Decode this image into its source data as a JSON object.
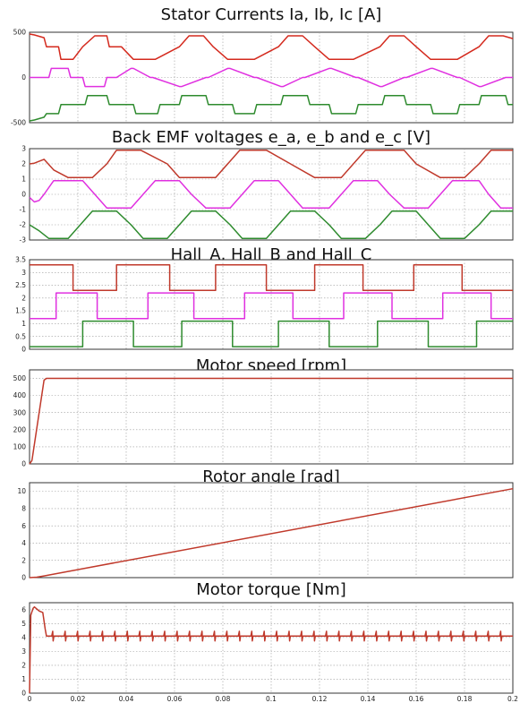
{
  "chart_data": [
    {
      "type": "line",
      "title": "Stator Currents Ia, Ib, Ic [A]",
      "ylim": [
        -500,
        500
      ],
      "yticks": [
        "500",
        "0",
        "-500"
      ],
      "xlim": [
        0,
        0.2
      ],
      "grid": true,
      "series": [
        {
          "color": "#d42a1e",
          "description": "trapezoid 6-step current, amplitude 200 A centred on +300, first step at startup peaks near +480",
          "x": [
            0,
            0.002,
            0.006,
            0.007,
            0.012,
            0.013,
            0.018,
            0.022,
            0.027,
            0.032,
            0.033,
            0.038,
            0.043,
            0.052,
            0.062,
            0.066,
            0.072,
            0.076,
            0.082,
            0.093,
            0.103,
            0.107,
            0.113,
            0.118,
            0.124,
            0.134,
            0.145,
            0.149,
            0.155,
            0.16,
            0.166,
            0.177,
            0.186,
            0.19,
            0.196,
            0.2
          ],
          "y": [
            480,
            470,
            440,
            340,
            340,
            200,
            200,
            340,
            460,
            460,
            340,
            340,
            200,
            200,
            340,
            460,
            460,
            340,
            200,
            200,
            340,
            460,
            460,
            340,
            200,
            200,
            340,
            460,
            460,
            340,
            200,
            200,
            340,
            460,
            460,
            430
          ]
        },
        {
          "color": "#e030e0",
          "description": "trapezoid current around 0, ±100 A",
          "x": [
            0,
            0.008,
            0.009,
            0.016,
            0.017,
            0.022,
            0.023,
            0.031,
            0.032,
            0.036,
            0.042,
            0.043,
            0.05,
            0.051,
            0.062,
            0.063,
            0.073,
            0.074,
            0.082,
            0.083,
            0.093,
            0.094,
            0.104,
            0.105,
            0.113,
            0.114,
            0.124,
            0.125,
            0.135,
            0.136,
            0.145,
            0.146,
            0.155,
            0.156,
            0.166,
            0.167,
            0.177,
            0.178,
            0.186,
            0.187,
            0.197,
            0.198,
            0.2
          ],
          "y": [
            0,
            0,
            100,
            100,
            0,
            0,
            -100,
            -100,
            0,
            0,
            100,
            100,
            0,
            0,
            -100,
            -100,
            0,
            0,
            100,
            100,
            0,
            0,
            -100,
            -100,
            0,
            0,
            100,
            100,
            0,
            0,
            -100,
            -100,
            0,
            0,
            100,
            100,
            0,
            0,
            -100,
            -100,
            0,
            0,
            0
          ]
        },
        {
          "color": "#2e8b2e",
          "description": "trapezoid current around -300, startup dip near -480",
          "x": [
            0,
            0.002,
            0.006,
            0.007,
            0.012,
            0.013,
            0.023,
            0.024,
            0.032,
            0.033,
            0.043,
            0.044,
            0.053,
            0.054,
            0.062,
            0.063,
            0.073,
            0.074,
            0.084,
            0.085,
            0.093,
            0.094,
            0.104,
            0.105,
            0.115,
            0.116,
            0.124,
            0.125,
            0.135,
            0.136,
            0.146,
            0.147,
            0.155,
            0.156,
            0.166,
            0.167,
            0.177,
            0.178,
            0.186,
            0.187,
            0.197,
            0.198,
            0.2
          ],
          "y": [
            -480,
            -470,
            -440,
            -400,
            -400,
            -300,
            -300,
            -200,
            -200,
            -300,
            -300,
            -400,
            -400,
            -300,
            -300,
            -200,
            -200,
            -300,
            -300,
            -400,
            -400,
            -300,
            -300,
            -200,
            -200,
            -300,
            -300,
            -400,
            -400,
            -300,
            -300,
            -200,
            -200,
            -300,
            -300,
            -400,
            -400,
            -300,
            -300,
            -200,
            -200,
            -300,
            -300
          ]
        }
      ]
    },
    {
      "type": "line",
      "title": "Back EMF voltages e_a, e_b and e_c [V]",
      "ylim": [
        -3,
        3
      ],
      "yticks": [
        "3",
        "2",
        "1",
        "0",
        "-1",
        "-2",
        "-3"
      ],
      "xlim": [
        0,
        0.2
      ],
      "grid": true,
      "series": [
        {
          "color": "#c0392b",
          "x": [
            0,
            0.002,
            0.006,
            0.01,
            0.016,
            0.026,
            0.032,
            0.036,
            0.046,
            0.057,
            0.062,
            0.067,
            0.077,
            0.087,
            0.093,
            0.098,
            0.108,
            0.118,
            0.124,
            0.129,
            0.139,
            0.149,
            0.155,
            0.16,
            0.17,
            0.18,
            0.186,
            0.191,
            0.2
          ],
          "y": [
            2.0,
            2.05,
            2.3,
            1.6,
            1.1,
            1.1,
            2.0,
            2.9,
            2.9,
            2.0,
            1.1,
            1.1,
            1.1,
            2.9,
            2.9,
            2.9,
            2.0,
            1.1,
            1.1,
            1.1,
            2.9,
            2.9,
            2.9,
            2.0,
            1.1,
            1.1,
            2.0,
            2.9,
            2.9
          ]
        },
        {
          "color": "#e030e0",
          "x": [
            0,
            0.002,
            0.004,
            0.006,
            0.01,
            0.012,
            0.022,
            0.027,
            0.032,
            0.042,
            0.047,
            0.052,
            0.062,
            0.067,
            0.073,
            0.083,
            0.088,
            0.093,
            0.103,
            0.108,
            0.113,
            0.124,
            0.129,
            0.134,
            0.144,
            0.149,
            0.155,
            0.165,
            0.17,
            0.175,
            0.186,
            0.19,
            0.195,
            0.2
          ],
          "y": [
            -0.2,
            -0.5,
            -0.4,
            0.0,
            0.9,
            0.9,
            0.9,
            0.0,
            -0.9,
            -0.9,
            0.0,
            0.9,
            0.9,
            0.0,
            -0.9,
            -0.9,
            0.0,
            0.9,
            0.9,
            0.0,
            -0.9,
            -0.9,
            0.0,
            0.9,
            0.9,
            0.0,
            -0.9,
            -0.9,
            0.0,
            0.9,
            0.9,
            0.0,
            -0.9,
            -0.9
          ]
        },
        {
          "color": "#2e8b2e",
          "x": [
            0,
            0.004,
            0.008,
            0.016,
            0.021,
            0.026,
            0.036,
            0.042,
            0.047,
            0.057,
            0.062,
            0.067,
            0.077,
            0.083,
            0.088,
            0.098,
            0.103,
            0.108,
            0.118,
            0.124,
            0.129,
            0.139,
            0.145,
            0.15,
            0.16,
            0.165,
            0.17,
            0.18,
            0.186,
            0.191,
            0.2
          ],
          "y": [
            -2.0,
            -2.4,
            -2.9,
            -2.9,
            -2.0,
            -1.1,
            -1.1,
            -2.0,
            -2.9,
            -2.9,
            -2.0,
            -1.1,
            -1.1,
            -2.0,
            -2.9,
            -2.9,
            -2.0,
            -1.1,
            -1.1,
            -2.0,
            -2.9,
            -2.9,
            -2.0,
            -1.1,
            -1.1,
            -2.0,
            -2.9,
            -2.9,
            -2.0,
            -1.1,
            -1.1
          ]
        }
      ]
    },
    {
      "type": "line",
      "title": "Hall_A, Hall_B and Hall_C",
      "ylim": [
        0,
        3.5
      ],
      "yticks": [
        "3.5",
        "3",
        "2.5",
        "2",
        "1.5",
        "1",
        "0.5",
        "0"
      ],
      "xlim": [
        0,
        0.2
      ],
      "grid": true,
      "series": [
        {
          "color": "#c0392b",
          "step": true,
          "x": [
            0,
            0.018,
            0.018,
            0.036,
            0.036,
            0.058,
            0.058,
            0.077,
            0.077,
            0.098,
            0.098,
            0.118,
            0.118,
            0.138,
            0.138,
            0.159,
            0.159,
            0.179,
            0.179,
            0.2
          ],
          "y": [
            3.3,
            3.3,
            2.3,
            2.3,
            3.3,
            3.3,
            2.3,
            2.3,
            3.3,
            3.3,
            2.3,
            2.3,
            3.3,
            3.3,
            2.3,
            2.3,
            3.3,
            3.3,
            2.3,
            2.3
          ]
        },
        {
          "color": "#e030e0",
          "step": true,
          "x": [
            0,
            0.011,
            0.011,
            0.028,
            0.028,
            0.049,
            0.049,
            0.068,
            0.068,
            0.089,
            0.089,
            0.109,
            0.109,
            0.13,
            0.13,
            0.15,
            0.15,
            0.171,
            0.171,
            0.191,
            0.191,
            0.2
          ],
          "y": [
            1.2,
            1.2,
            2.2,
            2.2,
            1.2,
            1.2,
            2.2,
            2.2,
            1.2,
            1.2,
            2.2,
            2.2,
            1.2,
            1.2,
            2.2,
            2.2,
            1.2,
            1.2,
            2.2,
            2.2,
            1.2,
            1.2
          ]
        },
        {
          "color": "#2e8b2e",
          "step": true,
          "x": [
            0,
            0.022,
            0.022,
            0.043,
            0.043,
            0.063,
            0.063,
            0.084,
            0.084,
            0.103,
            0.103,
            0.124,
            0.124,
            0.144,
            0.144,
            0.165,
            0.165,
            0.185,
            0.185,
            0.2
          ],
          "y": [
            0.1,
            0.1,
            1.1,
            1.1,
            0.1,
            0.1,
            1.1,
            1.1,
            0.1,
            0.1,
            1.1,
            1.1,
            0.1,
            0.1,
            1.1,
            1.1,
            0.1,
            0.1,
            1.1,
            1.1
          ]
        }
      ]
    },
    {
      "type": "line",
      "title": "Motor speed [rpm]",
      "ylim": [
        0,
        550
      ],
      "yticks": [
        "500",
        "400",
        "300",
        "200",
        "100",
        "0"
      ],
      "xlim": [
        0,
        0.2
      ],
      "grid": true,
      "series": [
        {
          "color": "#c0392b",
          "x": [
            0,
            0.001,
            0.006,
            0.007,
            0.2
          ],
          "y": [
            0,
            20,
            490,
            500,
            500
          ]
        }
      ]
    },
    {
      "type": "line",
      "title": "Rotor angle [rad]",
      "ylim": [
        0,
        11
      ],
      "yticks": [
        "10",
        "8",
        "6",
        "4",
        "2",
        "0"
      ],
      "xlim": [
        0,
        0.2
      ],
      "grid": true,
      "series": [
        {
          "color": "#c0392b",
          "x": [
            0,
            0.003,
            0.006,
            0.2
          ],
          "y": [
            0,
            0.05,
            0.2,
            10.3
          ]
        }
      ]
    },
    {
      "type": "line",
      "title": "Motor torque [Nm]",
      "ylim": [
        0,
        6.5
      ],
      "yticks": [
        "6",
        "5",
        "4",
        "3",
        "2",
        "1",
        "0"
      ],
      "xlim": [
        0,
        0.2
      ],
      "xticks": [
        "0",
        "0.02",
        "0.04",
        "0.06",
        "0.08",
        "0.1",
        "0.12",
        "0.14",
        "0.16",
        "0.18",
        "0.2"
      ],
      "grid": true,
      "series": [
        {
          "color": "#c0392b",
          "spike_period": 0.00515,
          "spike_amplitude": 0.35,
          "settle_value": 4.1,
          "x": [
            0,
            0.0005,
            0.0015,
            0.002,
            0.004,
            0.0055,
            0.0065,
            0.007,
            0.2
          ],
          "y": [
            0,
            5.6,
            6.1,
            6.2,
            5.9,
            5.8,
            4.6,
            4.1,
            4.1
          ]
        }
      ]
    }
  ]
}
